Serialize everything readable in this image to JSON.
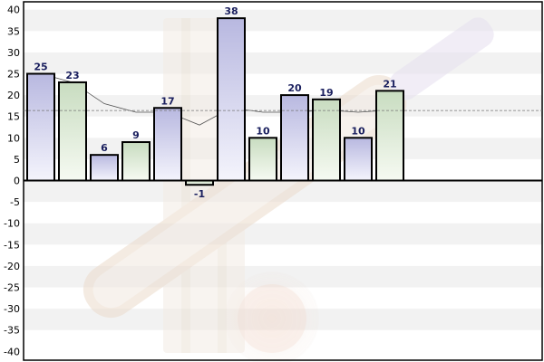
{
  "chart_data": {
    "type": "bar",
    "title": "",
    "xlabel": "",
    "ylabel": "",
    "ylim": [
      -42,
      41
    ],
    "yticks": [
      40,
      35,
      30,
      25,
      20,
      15,
      10,
      5,
      0,
      -5,
      -10,
      -15,
      -20,
      -25,
      -30,
      -35,
      -40
    ],
    "grid": true,
    "legend": "none",
    "values": [
      25,
      23,
      6,
      9,
      17,
      -1,
      38,
      10,
      20,
      19,
      10,
      21
    ],
    "data_labels": [
      "25",
      "23",
      "6",
      "9",
      "17",
      "-1",
      "38",
      "10",
      "20",
      "19",
      "10",
      "21"
    ],
    "bar_colors": [
      "lavender",
      "green",
      "lavender",
      "green",
      "lavender",
      "green",
      "lavender",
      "green",
      "lavender",
      "green",
      "lavender",
      "green"
    ],
    "trend_line": [
      25,
      23,
      18,
      16,
      16,
      13,
      17,
      16,
      16,
      16.5,
      16,
      16.5
    ],
    "average_line": 16.4
  },
  "colors": {
    "lavender_top": "#b8b8e0",
    "lavender_bottom": "#f4f4fc",
    "green_top": "#c8dcc0",
    "green_bottom": "#f6faf2",
    "label": "#1a1f5e",
    "zero_line": "#000000",
    "band": "#f2f2f2"
  }
}
